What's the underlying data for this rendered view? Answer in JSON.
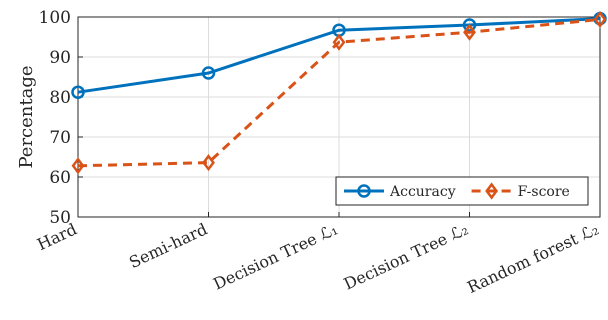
{
  "chart_data": {
    "type": "line",
    "categories": [
      "Hard",
      "Semi-hard",
      "Decision Tree ℒ₁",
      "Decision Tree ℒ₂",
      "Random forest ℒ₂"
    ],
    "series": [
      {
        "name": "Accuracy",
        "values": [
          81.2,
          86.0,
          96.7,
          98.0,
          99.6
        ],
        "color": "#0072BD",
        "dash": "solid",
        "marker": "circle"
      },
      {
        "name": "F-score",
        "values": [
          62.8,
          63.6,
          93.7,
          96.2,
          99.4
        ],
        "color": "#D95319",
        "dash": "dashed",
        "marker": "diamond"
      }
    ],
    "ylabel": "Percentage",
    "xlabel": "",
    "ylim": [
      50,
      100
    ],
    "yticks": [
      50,
      60,
      70,
      80,
      90,
      100
    ],
    "grid": true,
    "legend": {
      "position": "bottom-right",
      "orientation": "horizontal"
    }
  }
}
